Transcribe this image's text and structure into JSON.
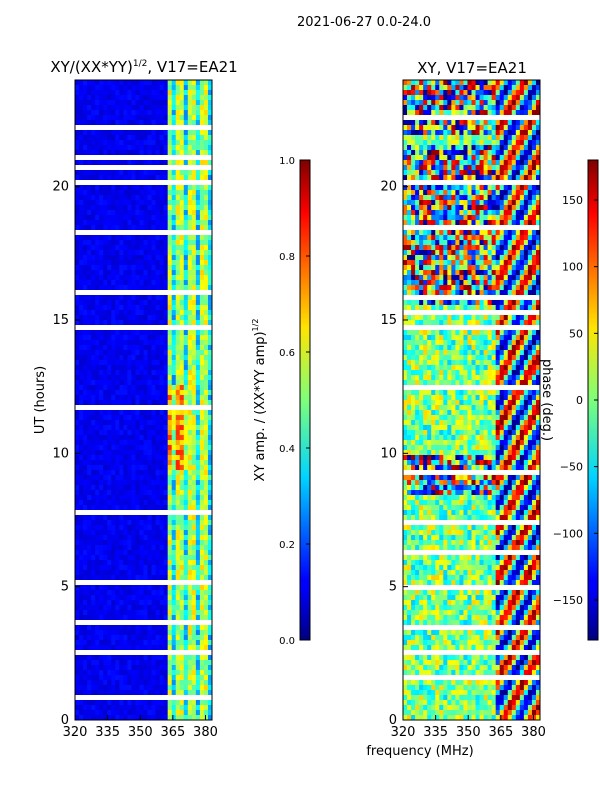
{
  "suptitle": "2021-06-27 0.0-24.0",
  "chart_data": [
    {
      "type": "heatmap",
      "title_main": "XY/(XX*YY)",
      "title_sup": "1/2",
      "title_tail": ", V17=EA21",
      "xlabel": "",
      "ylabel": "UT (hours)",
      "xlim": [
        320,
        383
      ],
      "ylim": [
        0,
        24
      ],
      "xticks": [
        320,
        335,
        350,
        365,
        380
      ],
      "yticks": [
        0,
        5,
        10,
        15,
        20
      ],
      "colorbar": {
        "label_main": "XY amp. / (XX*YY amp)",
        "label_sup": "1/2",
        "range": [
          0.0,
          1.0
        ],
        "ticks": [
          "0.0",
          "0.2",
          "0.4",
          "0.6",
          "0.8",
          "1.0"
        ]
      }
    },
    {
      "type": "heatmap",
      "title": "XY, V17=EA21",
      "xlabel": "frequency (MHz)",
      "ylabel": "",
      "xlim": [
        320,
        383
      ],
      "ylim": [
        0,
        24
      ],
      "xticks": [
        320,
        335,
        350,
        365,
        380
      ],
      "yticks": [
        0,
        5,
        10,
        15,
        20
      ],
      "colorbar": {
        "label": "phase (deg.)",
        "range": [
          -180,
          180
        ],
        "ticks": [
          "150",
          "100",
          "50",
          "0",
          "−50",
          "−100",
          "−150"
        ]
      }
    }
  ]
}
